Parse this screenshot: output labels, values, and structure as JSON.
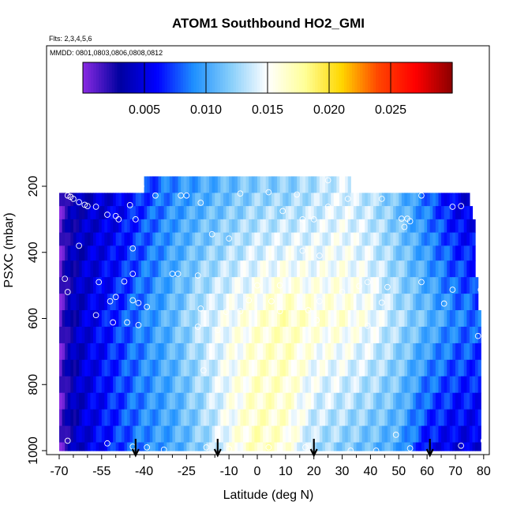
{
  "chart_data": {
    "type": "heatmap",
    "title": "ATOM1 Southbound HO2_GMI",
    "flights_note": "Flts: 2,3,4,5,6",
    "dates_note": "MMDD: 0801,0803,0806,0808,0812",
    "xlabel": "Latitude (deg N)",
    "ylabel": "PSXC (mbar)",
    "xlim": [
      -70,
      82
    ],
    "ylim": [
      1000,
      0
    ],
    "x_ticks": [
      -70,
      -55,
      -40,
      -25,
      -10,
      0,
      10,
      20,
      30,
      40,
      50,
      60,
      70,
      80
    ],
    "x_tick_labels": [
      "-70",
      "-55",
      "-40",
      "-25",
      "-10",
      "0",
      "10",
      "20",
      "30",
      "40",
      "50",
      "60",
      "70",
      "80"
    ],
    "x_minor_ticks": [
      -65,
      -60,
      -50,
      -45,
      -35,
      -30,
      -20,
      -15,
      -5,
      5,
      15,
      25,
      35,
      45,
      55,
      65,
      75
    ],
    "y_ticks": [
      200,
      400,
      600,
      800,
      1000
    ],
    "y_tick_labels": [
      "200",
      "400",
      "600",
      "800",
      "1000"
    ],
    "colorbar": {
      "range": [
        0,
        0.03
      ],
      "ticks": [
        0.005,
        0.01,
        0.015,
        0.02,
        0.025
      ],
      "tick_labels": [
        "0.005",
        "0.010",
        "0.015",
        "0.020",
        "0.025"
      ],
      "colors": [
        "#8a2be2",
        "#0000a0",
        "#0000ff",
        "#1e90ff",
        "#87cefa",
        "#ffffff",
        "#ffff99",
        "#ffd700",
        "#ff4500",
        "#ff0000",
        "#8b0000"
      ]
    },
    "pressure_levels": [
      200,
      240,
      280,
      320,
      360,
      400,
      450,
      500,
      550,
      600,
      650,
      700,
      750,
      800,
      850,
      900,
      950,
      1000
    ],
    "layer_lat_ranges": [
      [
        -40,
        33
      ],
      [
        -70,
        75
      ],
      [
        -70,
        76
      ],
      [
        -70,
        77
      ],
      [
        -70,
        77
      ],
      [
        -70,
        77
      ],
      [
        -70,
        77
      ],
      [
        -70,
        78
      ],
      [
        -70,
        78
      ],
      [
        -70,
        79
      ],
      [
        -70,
        79
      ],
      [
        -70,
        79
      ],
      [
        -70,
        79
      ],
      [
        -70,
        79
      ],
      [
        -70,
        79
      ],
      [
        -70,
        79
      ],
      [
        -70,
        79
      ],
      [
        -70,
        79
      ]
    ],
    "lat_profile": {
      "lat": [
        -70,
        -67,
        -60,
        -50,
        -40,
        -30,
        -20,
        -10,
        0,
        10,
        20,
        30,
        40,
        50,
        60,
        70,
        79
      ],
      "value_mid": [
        0.0004,
        0.003,
        0.005,
        0.007,
        0.009,
        0.011,
        0.0135,
        0.015,
        0.016,
        0.017,
        0.016,
        0.016,
        0.015,
        0.013,
        0.011,
        0.009,
        0.008
      ],
      "value_upper": [
        0.0004,
        0.003,
        0.004,
        0.005,
        0.007,
        0.009,
        0.01,
        0.011,
        0.012,
        0.012,
        0.013,
        0.014,
        0.013,
        0.011,
        0.008,
        0.005,
        0.004
      ],
      "value_lower": [
        0.0004,
        0.003,
        0.005,
        0.007,
        0.009,
        0.01,
        0.012,
        0.015,
        0.017,
        0.016,
        0.013,
        0.012,
        0.011,
        0.01,
        0.006,
        0.005,
        0.005
      ]
    },
    "sample_points": [
      [
        -41,
        200
      ],
      [
        -67,
        228
      ],
      [
        -66,
        232
      ],
      [
        -65,
        238
      ],
      [
        -63,
        248
      ],
      [
        -61,
        256
      ],
      [
        -60,
        260
      ],
      [
        -57,
        262
      ],
      [
        -36,
        228
      ],
      [
        -27,
        228
      ],
      [
        -25,
        228
      ],
      [
        -6,
        222
      ],
      [
        4,
        218
      ],
      [
        14,
        225
      ],
      [
        25,
        182
      ],
      [
        32,
        238
      ],
      [
        44,
        238
      ],
      [
        58,
        228
      ],
      [
        -20,
        250
      ],
      [
        -45,
        257
      ],
      [
        -50,
        290
      ],
      [
        -53,
        286
      ],
      [
        -49,
        300
      ],
      [
        -43,
        300
      ],
      [
        9,
        275
      ],
      [
        16,
        300
      ],
      [
        20,
        300
      ],
      [
        25,
        262
      ],
      [
        51,
        298
      ],
      [
        53,
        298
      ],
      [
        54,
        306
      ],
      [
        69,
        262
      ],
      [
        72,
        260
      ],
      [
        -16,
        345
      ],
      [
        -10,
        358
      ],
      [
        52,
        323
      ],
      [
        -44,
        388
      ],
      [
        -30,
        465
      ],
      [
        -28,
        465
      ],
      [
        -21,
        470
      ],
      [
        16,
        395
      ],
      [
        22,
        410
      ],
      [
        -44,
        465
      ],
      [
        -47,
        488
      ],
      [
        -56,
        490
      ],
      [
        -68,
        480
      ],
      [
        -67,
        520
      ],
      [
        -50,
        535
      ],
      [
        -52,
        548
      ],
      [
        -44,
        545
      ],
      [
        -42,
        553
      ],
      [
        -39,
        565
      ],
      [
        0,
        500
      ],
      [
        8,
        500
      ],
      [
        36,
        502
      ],
      [
        39,
        490
      ],
      [
        46,
        505
      ],
      [
        58,
        490
      ],
      [
        69,
        513
      ],
      [
        79,
        513
      ],
      [
        -3,
        545
      ],
      [
        -11,
        580
      ],
      [
        -6,
        578
      ],
      [
        8,
        578
      ],
      [
        18,
        575
      ],
      [
        -20,
        570
      ],
      [
        5,
        548
      ],
      [
        22,
        548
      ],
      [
        30,
        520
      ],
      [
        44,
        552
      ],
      [
        66,
        555
      ],
      [
        -57,
        590
      ],
      [
        -51,
        612
      ],
      [
        -46,
        612
      ],
      [
        -42,
        620
      ],
      [
        -21,
        625
      ],
      [
        21,
        605
      ],
      [
        39,
        622
      ],
      [
        -14,
        635
      ],
      [
        -67,
        970
      ],
      [
        -53,
        978
      ],
      [
        -44,
        988
      ],
      [
        -39,
        990
      ],
      [
        -33,
        997
      ],
      [
        -18,
        990
      ],
      [
        -10,
        995
      ],
      [
        4,
        990
      ],
      [
        17,
        990
      ],
      [
        33,
        1000
      ],
      [
        42,
        1000
      ],
      [
        54,
        993
      ],
      [
        49,
        952
      ],
      [
        72,
        985
      ],
      [
        80,
        970
      ],
      [
        78,
        653
      ],
      [
        -19,
        757
      ],
      [
        -63,
        380
      ]
    ],
    "arrows_lat": [
      -43,
      -14,
      20,
      61
    ]
  }
}
